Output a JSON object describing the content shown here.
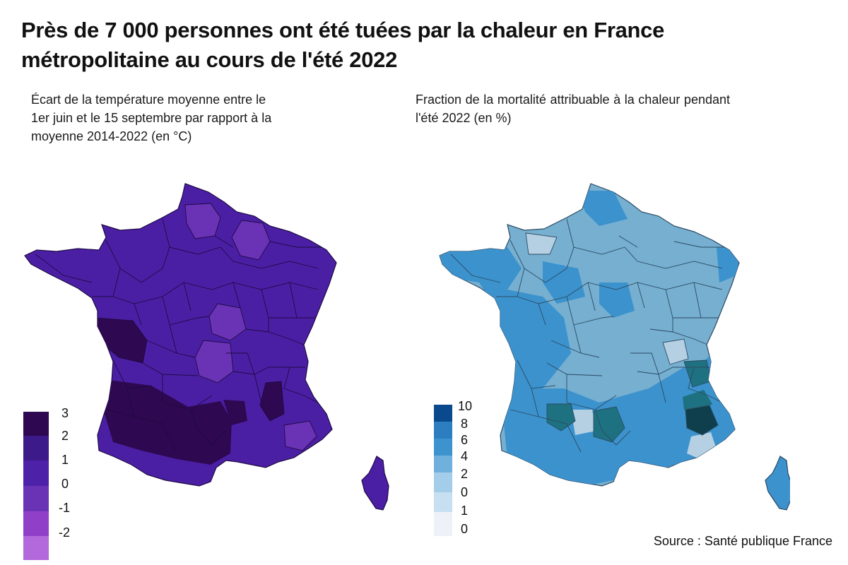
{
  "title": "Près de 7 000 personnes ont été tuées par la chaleur en France métropolitaine au cours de l'été 2022",
  "maps": {
    "left": {
      "subtitle": "Écart de la température moyenne entre le 1er juin et le 15 septembre par rapport à la moyenne 2014-2022 (en °C)",
      "legend": {
        "labels": [
          "3",
          "2",
          "1",
          "0",
          "-1",
          "-2"
        ],
        "colors": [
          "#2e0850",
          "#3d1a8a",
          "#4e22a8",
          "#6a33b5",
          "#9040c8",
          "#b368dc"
        ]
      },
      "region_colors": {
        "base": "#4b1fa4",
        "lighter": "#6a33b5",
        "darker": "#2e0850",
        "stroke": "#1e0a44"
      }
    },
    "right": {
      "subtitle": "Fraction de la mortalité attribuable à la chaleur pendant l'été 2022 (en %)",
      "legend": {
        "labels": [
          "10",
          "8",
          "6",
          "4",
          "2",
          "0",
          "1",
          "0"
        ],
        "colors": [
          "#0a4a8c",
          "#2c7ec0",
          "#3c93ce",
          "#6fb0dc",
          "#a3cde9",
          "#c6dff1",
          "#eef2f8"
        ]
      },
      "region_colors": {
        "base": "#76afd0",
        "medium": "#3b92cd",
        "light": "#b5d0e3",
        "teal": "#1e7180",
        "dark_teal": "#0f3f4c",
        "stroke": "#2c4a62"
      }
    }
  },
  "source": "Source : Santé publique France"
}
